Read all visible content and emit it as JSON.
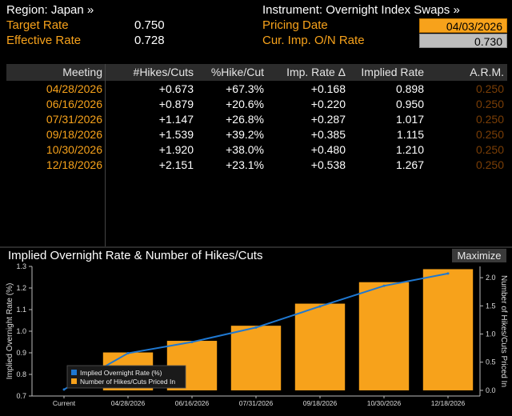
{
  "header": {
    "region": "Region: Japan »",
    "instrument": "Instrument: Overnight Index Swaps »",
    "target_rate_label": "Target Rate",
    "target_rate_value": "0.750",
    "effective_rate_label": "Effective Rate",
    "effective_rate_value": "0.728",
    "pricing_date_label": "Pricing Date",
    "pricing_date_value": "04/03/2026",
    "cur_imp_label": "Cur. Imp. O/N Rate",
    "cur_imp_value": "0.730"
  },
  "table": {
    "columns": [
      "Meeting",
      "#Hikes/Cuts",
      "%Hike/Cut",
      "Imp. Rate Δ",
      "Implied Rate",
      "A.R.M."
    ],
    "rows": [
      [
        "04/28/2026",
        "+0.673",
        "+67.3%",
        "+0.168",
        "0.898",
        "0.250"
      ],
      [
        "06/16/2026",
        "+0.879",
        "+20.6%",
        "+0.220",
        "0.950",
        "0.250"
      ],
      [
        "07/31/2026",
        "+1.147",
        "+26.8%",
        "+0.287",
        "1.017",
        "0.250"
      ],
      [
        "09/18/2026",
        "+1.539",
        "+39.2%",
        "+0.385",
        "1.115",
        "0.250"
      ],
      [
        "10/30/2026",
        "+1.920",
        "+38.0%",
        "+0.480",
        "1.210",
        "0.250"
      ],
      [
        "12/18/2026",
        "+2.151",
        "+23.1%",
        "+0.538",
        "1.267",
        "0.250"
      ]
    ]
  },
  "chart_panel": {
    "title": "Implied Overnight Rate & Number of Hikes/Cuts",
    "maximize_label": "Maximize"
  },
  "colors": {
    "accent_orange": "#f7a21b",
    "line_blue": "#1f78d1",
    "background": "#000000"
  },
  "chart_data": {
    "type": "bar",
    "categories": [
      "Current",
      "04/28/2026",
      "06/16/2026",
      "07/31/2026",
      "09/18/2026",
      "10/30/2026",
      "12/18/2026"
    ],
    "series": [
      {
        "name": "Implied Overnight Rate (%)",
        "type": "line",
        "axis": "left",
        "values": [
          0.73,
          0.898,
          0.95,
          1.017,
          1.115,
          1.21,
          1.267
        ]
      },
      {
        "name": "Number of Hikes/Cuts Priced In",
        "type": "bar",
        "axis": "right",
        "values": [
          null,
          0.673,
          0.879,
          1.147,
          1.539,
          1.92,
          2.151
        ]
      }
    ],
    "ylabel": "Implied Overnight Rate (%)",
    "y2label": "Number of Hikes/Cuts Priced In",
    "ylim": [
      0.7,
      1.3
    ],
    "yticks": [
      "0.7",
      "0.8",
      "0.9",
      "1.0",
      "1.1",
      "1.2",
      "1.3"
    ],
    "y2lim": [
      -0.1,
      2.2
    ],
    "y2ticks": [
      "0.0",
      "0.5",
      "1.0",
      "1.5",
      "2.0"
    ],
    "legend_position": "bottom-left",
    "grid": false
  }
}
